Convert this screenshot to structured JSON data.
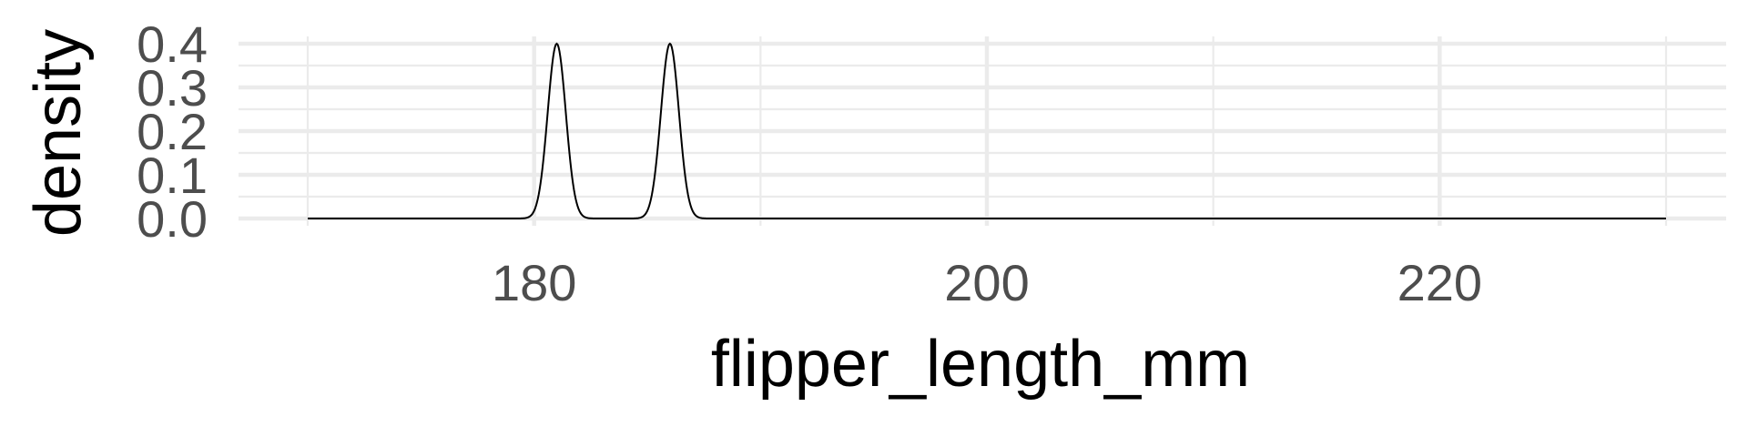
{
  "chart_data": {
    "type": "line",
    "title": "",
    "xlabel": "flipper_length_mm",
    "ylabel": "density",
    "xlim": [
      167,
      233
    ],
    "ylim": [
      -0.01,
      0.41
    ],
    "x_ticks": [
      180,
      200,
      220
    ],
    "x_tick_labels": [
      "180",
      "200",
      "220"
    ],
    "x_minor_ticks": [
      170,
      190,
      210,
      230
    ],
    "y_ticks": [
      0.0,
      0.1,
      0.2,
      0.3,
      0.4
    ],
    "y_tick_labels": [
      "0.0",
      "0.1",
      "0.2",
      "0.3",
      "0.4"
    ],
    "y_minor_ticks": [
      0.05,
      0.15,
      0.25,
      0.35
    ],
    "grid": true,
    "legend": "none",
    "series": [
      {
        "x_range": [
          170,
          230
        ],
        "peaks": [
          {
            "x": 181,
            "density": 0.4
          },
          {
            "x": 186,
            "density": 0.4
          }
        ]
      }
    ]
  },
  "colors": {
    "grid": "#ebebeb",
    "tick_text": "#4d4d4d",
    "line": "#000000",
    "background": "#ffffff"
  }
}
